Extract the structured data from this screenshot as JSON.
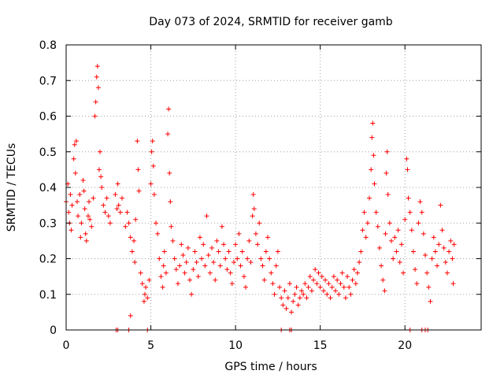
{
  "chart_data": {
    "type": "scatter",
    "title": "Day 073 of 2024, SRMTID for receiver gamb",
    "xlabel": "GPS time / hours",
    "ylabel": "SRMTID / TECUs",
    "xlim": [
      0,
      24.5
    ],
    "ylim": [
      0,
      0.8
    ],
    "xticks": [
      0,
      5,
      10,
      15,
      20
    ],
    "yticks": [
      0,
      0.1,
      0.2,
      0.3,
      0.4,
      0.5,
      0.6,
      0.7,
      0.8
    ],
    "xtick_labels": [
      "0",
      "5",
      "10",
      "15",
      "20"
    ],
    "ytick_labels": [
      "0",
      "0.1",
      "0.2",
      "0.3",
      "0.4",
      "0.5",
      "0.6",
      "0.7",
      "0.8"
    ],
    "grid": true,
    "marker": "+",
    "color": "#ff0000",
    "series": [
      {
        "name": "SRMTID",
        "points": [
          [
            0.0,
            0.36
          ],
          [
            0.1,
            0.41
          ],
          [
            0.15,
            0.33
          ],
          [
            0.2,
            0.3
          ],
          [
            0.25,
            0.38
          ],
          [
            0.3,
            0.28
          ],
          [
            0.35,
            0.35
          ],
          [
            0.45,
            0.48
          ],
          [
            0.5,
            0.52
          ],
          [
            0.55,
            0.44
          ],
          [
            0.6,
            0.53
          ],
          [
            0.65,
            0.36
          ],
          [
            0.7,
            0.32
          ],
          [
            0.8,
            0.38
          ],
          [
            0.85,
            0.26
          ],
          [
            0.9,
            0.3
          ],
          [
            1.0,
            0.42
          ],
          [
            1.05,
            0.39
          ],
          [
            1.1,
            0.34
          ],
          [
            1.15,
            0.27
          ],
          [
            1.2,
            0.25
          ],
          [
            1.3,
            0.32
          ],
          [
            1.35,
            0.36
          ],
          [
            1.4,
            0.31
          ],
          [
            1.5,
            0.29
          ],
          [
            1.6,
            0.37
          ],
          [
            1.7,
            0.6
          ],
          [
            1.75,
            0.64
          ],
          [
            1.8,
            0.71
          ],
          [
            1.85,
            0.74
          ],
          [
            1.9,
            0.68
          ],
          [
            1.95,
            0.45
          ],
          [
            2.0,
            0.5
          ],
          [
            2.05,
            0.43
          ],
          [
            2.1,
            0.4
          ],
          [
            2.2,
            0.35
          ],
          [
            2.3,
            0.33
          ],
          [
            2.4,
            0.37
          ],
          [
            2.5,
            0.32
          ],
          [
            2.6,
            0.3
          ],
          [
            2.9,
            0.38
          ],
          [
            3.0,
            0.34
          ],
          [
            3.05,
            0.41
          ],
          [
            3.1,
            0.35
          ],
          [
            3.2,
            0.33
          ],
          [
            3.3,
            0.37
          ],
          [
            3.5,
            0.29
          ],
          [
            3.6,
            0.33
          ],
          [
            3.7,
            0.3
          ],
          [
            3.8,
            0.26
          ],
          [
            3.9,
            0.22
          ],
          [
            4.0,
            0.25
          ],
          [
            4.05,
            0.19
          ],
          [
            4.1,
            0.31
          ],
          [
            4.2,
            0.53
          ],
          [
            4.25,
            0.45
          ],
          [
            4.3,
            0.39
          ],
          [
            4.4,
            0.16
          ],
          [
            4.5,
            0.13
          ],
          [
            4.6,
            0.08
          ],
          [
            4.65,
            0.1
          ],
          [
            4.7,
            0.12
          ],
          [
            4.8,
            0.09
          ],
          [
            4.9,
            0.14
          ],
          [
            5.0,
            0.41
          ],
          [
            5.05,
            0.5
          ],
          [
            5.1,
            0.53
          ],
          [
            5.15,
            0.46
          ],
          [
            5.2,
            0.38
          ],
          [
            5.3,
            0.3
          ],
          [
            5.4,
            0.27
          ],
          [
            5.5,
            0.2
          ],
          [
            5.6,
            0.15
          ],
          [
            5.7,
            0.12
          ],
          [
            5.75,
            0.18
          ],
          [
            5.8,
            0.22
          ],
          [
            5.9,
            0.16
          ],
          [
            6.0,
            0.55
          ],
          [
            6.05,
            0.62
          ],
          [
            6.1,
            0.44
          ],
          [
            6.15,
            0.36
          ],
          [
            6.2,
            0.29
          ],
          [
            6.3,
            0.25
          ],
          [
            6.4,
            0.2
          ],
          [
            6.5,
            0.17
          ],
          [
            6.6,
            0.13
          ],
          [
            6.7,
            0.18
          ],
          [
            6.8,
            0.24
          ],
          [
            6.9,
            0.21
          ],
          [
            7.0,
            0.16
          ],
          [
            7.1,
            0.19
          ],
          [
            7.2,
            0.23
          ],
          [
            7.3,
            0.14
          ],
          [
            7.4,
            0.1
          ],
          [
            7.5,
            0.17
          ],
          [
            7.6,
            0.22
          ],
          [
            7.7,
            0.19
          ],
          [
            7.8,
            0.15
          ],
          [
            7.9,
            0.26
          ],
          [
            8.0,
            0.2
          ],
          [
            8.1,
            0.24
          ],
          [
            8.2,
            0.18
          ],
          [
            8.3,
            0.32
          ],
          [
            8.4,
            0.21
          ],
          [
            8.5,
            0.16
          ],
          [
            8.6,
            0.23
          ],
          [
            8.7,
            0.19
          ],
          [
            8.8,
            0.14
          ],
          [
            8.9,
            0.25
          ],
          [
            9.0,
            0.22
          ],
          [
            9.1,
            0.18
          ],
          [
            9.2,
            0.29
          ],
          [
            9.3,
            0.24
          ],
          [
            9.4,
            0.2
          ],
          [
            9.5,
            0.17
          ],
          [
            9.6,
            0.22
          ],
          [
            9.7,
            0.16
          ],
          [
            9.8,
            0.13
          ],
          [
            9.9,
            0.19
          ],
          [
            10.0,
            0.24
          ],
          [
            10.1,
            0.2
          ],
          [
            10.2,
            0.27
          ],
          [
            10.3,
            0.18
          ],
          [
            10.4,
            0.22
          ],
          [
            10.5,
            0.15
          ],
          [
            10.6,
            0.12
          ],
          [
            10.7,
            0.2
          ],
          [
            10.8,
            0.25
          ],
          [
            10.9,
            0.19
          ],
          [
            11.0,
            0.32
          ],
          [
            11.05,
            0.38
          ],
          [
            11.1,
            0.34
          ],
          [
            11.2,
            0.27
          ],
          [
            11.3,
            0.24
          ],
          [
            11.4,
            0.3
          ],
          [
            11.5,
            0.2
          ],
          [
            11.6,
            0.18
          ],
          [
            11.7,
            0.14
          ],
          [
            11.8,
            0.22
          ],
          [
            11.9,
            0.26
          ],
          [
            12.0,
            0.2
          ],
          [
            12.1,
            0.16
          ],
          [
            12.2,
            0.13
          ],
          [
            12.3,
            0.1
          ],
          [
            12.4,
            0.18
          ],
          [
            12.5,
            0.22
          ],
          [
            12.6,
            0.12
          ],
          [
            12.7,
            0.09
          ],
          [
            12.8,
            0.07
          ],
          [
            12.9,
            0.11
          ],
          [
            13.0,
            0.06
          ],
          [
            13.1,
            0.09
          ],
          [
            13.2,
            0.13
          ],
          [
            13.3,
            0.05
          ],
          [
            13.4,
            0.08
          ],
          [
            13.5,
            0.1
          ],
          [
            13.6,
            0.12
          ],
          [
            13.7,
            0.07
          ],
          [
            13.8,
            0.09
          ],
          [
            13.9,
            0.11
          ],
          [
            14.0,
            0.1
          ],
          [
            14.1,
            0.13
          ],
          [
            14.2,
            0.09
          ],
          [
            14.3,
            0.12
          ],
          [
            14.4,
            0.15
          ],
          [
            14.5,
            0.11
          ],
          [
            14.6,
            0.14
          ],
          [
            14.7,
            0.17
          ],
          [
            14.8,
            0.13
          ],
          [
            14.9,
            0.16
          ],
          [
            15.0,
            0.12
          ],
          [
            15.1,
            0.15
          ],
          [
            15.2,
            0.11
          ],
          [
            15.3,
            0.14
          ],
          [
            15.4,
            0.1
          ],
          [
            15.5,
            0.13
          ],
          [
            15.6,
            0.09
          ],
          [
            15.7,
            0.12
          ],
          [
            15.8,
            0.15
          ],
          [
            15.9,
            0.11
          ],
          [
            16.0,
            0.14
          ],
          [
            16.1,
            0.1
          ],
          [
            16.2,
            0.13
          ],
          [
            16.3,
            0.16
          ],
          [
            16.4,
            0.12
          ],
          [
            16.5,
            0.09
          ],
          [
            16.6,
            0.15
          ],
          [
            16.7,
            0.12
          ],
          [
            16.8,
            0.1
          ],
          [
            16.9,
            0.14
          ],
          [
            17.0,
            0.17
          ],
          [
            17.1,
            0.13
          ],
          [
            17.2,
            0.16
          ],
          [
            17.3,
            0.19
          ],
          [
            17.4,
            0.22
          ],
          [
            17.5,
            0.28
          ],
          [
            17.6,
            0.33
          ],
          [
            17.7,
            0.26
          ],
          [
            17.8,
            0.3
          ],
          [
            17.9,
            0.37
          ],
          [
            18.0,
            0.45
          ],
          [
            18.05,
            0.54
          ],
          [
            18.1,
            0.58
          ],
          [
            18.15,
            0.49
          ],
          [
            18.2,
            0.41
          ],
          [
            18.3,
            0.33
          ],
          [
            18.4,
            0.29
          ],
          [
            18.5,
            0.23
          ],
          [
            18.6,
            0.18
          ],
          [
            18.7,
            0.14
          ],
          [
            18.8,
            0.11
          ],
          [
            18.85,
            0.27
          ],
          [
            18.9,
            0.44
          ],
          [
            18.95,
            0.5
          ],
          [
            19.0,
            0.38
          ],
          [
            19.1,
            0.3
          ],
          [
            19.2,
            0.25
          ],
          [
            19.3,
            0.2
          ],
          [
            19.4,
            0.26
          ],
          [
            19.5,
            0.22
          ],
          [
            19.6,
            0.28
          ],
          [
            19.7,
            0.19
          ],
          [
            19.8,
            0.24
          ],
          [
            19.9,
            0.16
          ],
          [
            20.0,
            0.31
          ],
          [
            20.1,
            0.48
          ],
          [
            20.15,
            0.45
          ],
          [
            20.2,
            0.37
          ],
          [
            20.3,
            0.33
          ],
          [
            20.4,
            0.28
          ],
          [
            20.5,
            0.22
          ],
          [
            20.6,
            0.17
          ],
          [
            20.7,
            0.13
          ],
          [
            20.8,
            0.3
          ],
          [
            20.9,
            0.36
          ],
          [
            21.0,
            0.33
          ],
          [
            21.1,
            0.27
          ],
          [
            21.2,
            0.21
          ],
          [
            21.3,
            0.16
          ],
          [
            21.4,
            0.12
          ],
          [
            21.5,
            0.08
          ],
          [
            21.6,
            0.2
          ],
          [
            21.7,
            0.26
          ],
          [
            21.8,
            0.22
          ],
          [
            21.9,
            0.18
          ],
          [
            22.0,
            0.24
          ],
          [
            22.1,
            0.35
          ],
          [
            22.2,
            0.28
          ],
          [
            22.3,
            0.23
          ],
          [
            22.4,
            0.19
          ],
          [
            22.5,
            0.16
          ],
          [
            22.6,
            0.22
          ],
          [
            22.7,
            0.25
          ],
          [
            22.8,
            0.2
          ],
          [
            22.85,
            0.13
          ],
          [
            22.9,
            0.24
          ],
          [
            2.95,
            0.0
          ],
          [
            3.05,
            0.0
          ],
          [
            3.7,
            0.0
          ],
          [
            4.8,
            0.0
          ],
          [
            12.7,
            0.0
          ],
          [
            13.2,
            0.0
          ],
          [
            13.3,
            0.0
          ],
          [
            20.3,
            0.0
          ],
          [
            21.0,
            0.0
          ],
          [
            21.2,
            0.0
          ],
          [
            21.35,
            0.0
          ],
          [
            3.8,
            0.04
          ]
        ]
      }
    ]
  }
}
